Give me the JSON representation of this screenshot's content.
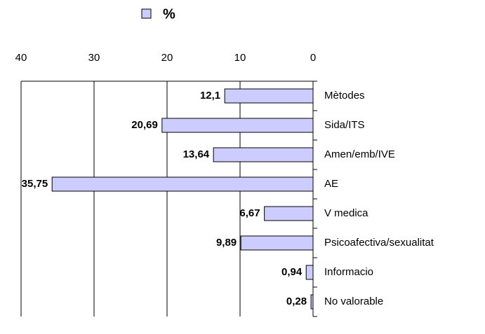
{
  "chart_data": {
    "type": "bar",
    "orientation": "horizontal",
    "categories": [
      "Mètodes",
      "Sida/ITS",
      "Amen/emb/IVE",
      "AE",
      "V medica",
      "Psicoafectiva/sexualitat",
      "Informacio",
      "No valorable"
    ],
    "series": [
      {
        "name": "%",
        "color": "#ccccff",
        "values": [
          12.1,
          20.69,
          13.64,
          35.75,
          6.67,
          9.89,
          0.94,
          0.28
        ],
        "value_labels": [
          "12,1",
          "20,69",
          "13,64",
          "35,75",
          "6,67",
          "9,89",
          "0,94",
          "0,28"
        ]
      }
    ],
    "xlim": [
      40,
      0
    ],
    "xticks": [
      40,
      30,
      20,
      10,
      0
    ],
    "grid": true,
    "legend": "top"
  }
}
